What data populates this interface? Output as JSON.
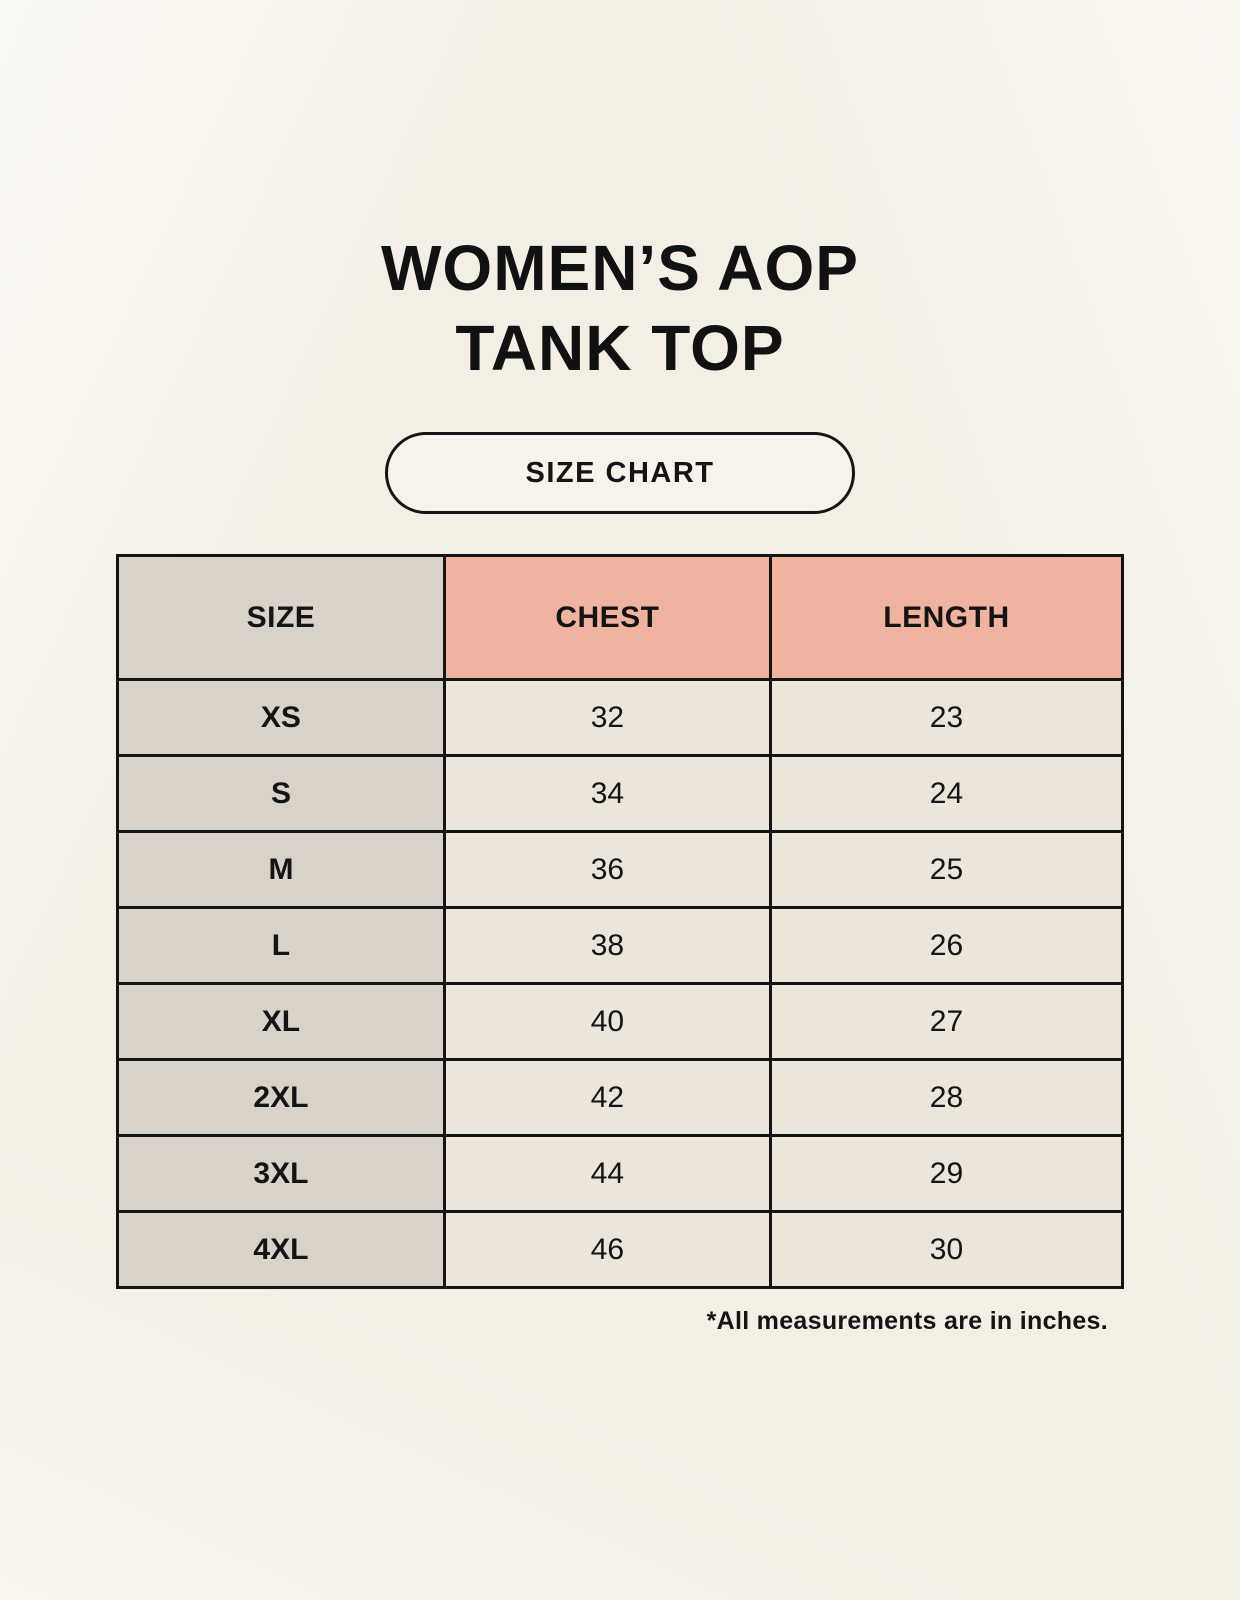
{
  "title": {
    "line1": "WOMEN’S AOP",
    "line2": "TANK TOP"
  },
  "size_chart_label": "SIZE CHART",
  "footnote": "*All measurements are in inches.",
  "colors": {
    "background": "#f4efe5",
    "header_accent": "#efb3a0",
    "header_neutral": "#d9d2c8",
    "cell_light": "#ebe5da",
    "cell_dark": "#d9d2c8",
    "border": "#141414",
    "text": "#111111"
  },
  "chart_data": {
    "type": "table",
    "title": "WOMEN’S AOP TANK TOP — SIZE CHART",
    "units": "inches",
    "columns": [
      "SIZE",
      "CHEST",
      "LENGTH"
    ],
    "rows": [
      {
        "size": "XS",
        "chest": 32,
        "length": 23
      },
      {
        "size": "S",
        "chest": 34,
        "length": 24
      },
      {
        "size": "M",
        "chest": 36,
        "length": 25
      },
      {
        "size": "L",
        "chest": 38,
        "length": 26
      },
      {
        "size": "XL",
        "chest": 40,
        "length": 27
      },
      {
        "size": "2XL",
        "chest": 42,
        "length": 28
      },
      {
        "size": "3XL",
        "chest": 44,
        "length": 29
      },
      {
        "size": "4XL",
        "chest": 46,
        "length": 30
      }
    ]
  }
}
